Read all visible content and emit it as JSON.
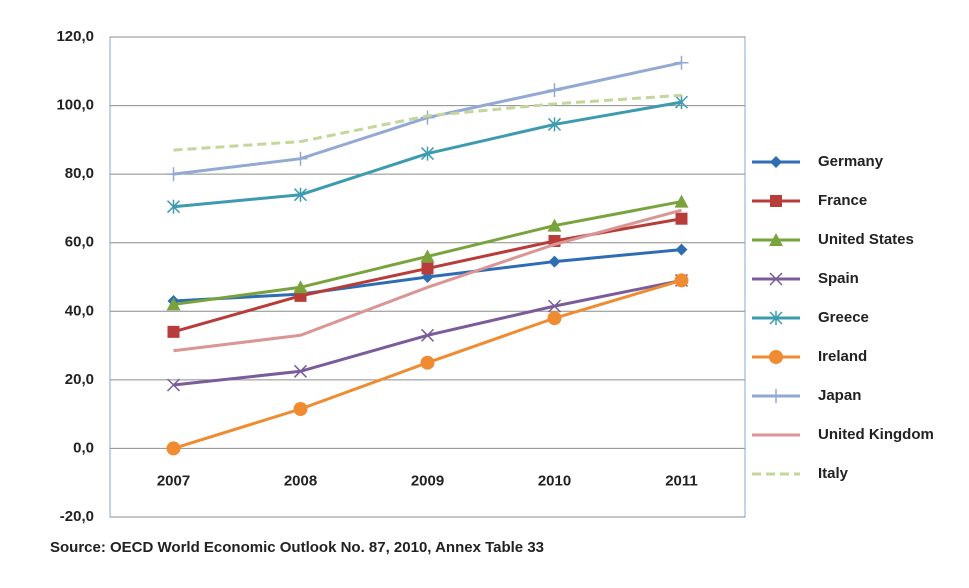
{
  "chart_data": {
    "type": "line",
    "source": "Source: OECD World Economic Outlook No. 87, 2010, Annex Table 33",
    "categories": [
      "2007",
      "2008",
      "2009",
      "2010",
      "2011"
    ],
    "ylim": [
      -20,
      120
    ],
    "yticks": [
      {
        "value": -20,
        "label": "-20,0"
      },
      {
        "value": 0,
        "label": "0,0"
      },
      {
        "value": 20,
        "label": "20,0"
      },
      {
        "value": 40,
        "label": "40,0"
      },
      {
        "value": 60,
        "label": "60,0"
      },
      {
        "value": 80,
        "label": "80,0"
      },
      {
        "value": 100,
        "label": "100,0"
      },
      {
        "value": 120,
        "label": "120,0"
      }
    ],
    "grid": true,
    "legend": "right",
    "series": [
      {
        "name": "Germany",
        "color": "#2e6db4",
        "marker": "diamond",
        "values": [
          43,
          45,
          50,
          54.5,
          58
        ]
      },
      {
        "name": "France",
        "color": "#b83c3a",
        "marker": "square",
        "values": [
          34,
          44.5,
          52.5,
          60.5,
          67
        ]
      },
      {
        "name": "United States",
        "color": "#79a33d",
        "marker": "triangle",
        "values": [
          42,
          47,
          56,
          65,
          72
        ]
      },
      {
        "name": "Spain",
        "color": "#7a5c9a",
        "marker": "x",
        "values": [
          18.5,
          22.5,
          33,
          41.5,
          49
        ]
      },
      {
        "name": "Greece",
        "color": "#3d9bb0",
        "marker": "asterisk",
        "values": [
          70.5,
          74,
          86,
          94.5,
          101
        ]
      },
      {
        "name": "Ireland",
        "color": "#ef8c32",
        "marker": "circle",
        "values": [
          0,
          11.5,
          25,
          38,
          49
        ]
      },
      {
        "name": "Japan",
        "color": "#93a9d4",
        "marker": "plus",
        "values": [
          80,
          84.5,
          96.5,
          104.5,
          112.5
        ]
      },
      {
        "name": "United Kingdom",
        "color": "#d99694",
        "marker": "none",
        "values": [
          28.5,
          33,
          47,
          59.5,
          69.5
        ]
      },
      {
        "name": "Italy",
        "color": "#c3d69b",
        "marker": "none",
        "dashed": true,
        "values": [
          87,
          89.5,
          97,
          100.5,
          103
        ]
      }
    ]
  }
}
